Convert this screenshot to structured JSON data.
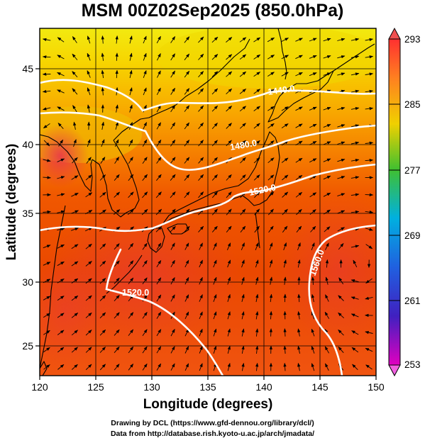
{
  "title": "MSM 00Z02Sep2025 (850.0hPa)",
  "xlabel": "Longitude (degrees)",
  "ylabel": "Latitude  (degrees)",
  "x_ticks": [
    "120",
    "125",
    "130",
    "135",
    "140",
    "145",
    "150"
  ],
  "y_ticks": [
    "25",
    "30",
    "35",
    "40",
    "45"
  ],
  "colorbar_ticks": [
    "293",
    "285",
    "277",
    "269",
    "261",
    "253"
  ],
  "contour_labels": [
    "1440.0",
    "1480.0",
    "1520.0",
    "1520.0",
    "1560.0"
  ],
  "credit_line1": "Drawing by DCL (https://www.gfd-dennou.org/library/dcl/)",
  "credit_line2": "Data from http://database.rish.kyoto-u.ac.jp/arch/jmadata/",
  "chart_data": {
    "type": "heatmap",
    "title": "MSM 00Z02Sep2025 (850.0hPa)",
    "xlabel": "Longitude (degrees)",
    "ylabel": "Latitude  (degrees)",
    "xlim": [
      120,
      150
    ],
    "ylim": [
      22.4,
      47.6
    ],
    "colorbar": {
      "range": [
        253,
        293
      ],
      "ticks": [
        293,
        285,
        277,
        269,
        261,
        253
      ],
      "colors": [
        "#e000c0",
        "#3030d0",
        "#00b0e0",
        "#00c060",
        "#d0e000",
        "#ff8000",
        "#ff3030"
      ]
    },
    "contours": [
      {
        "label": "1440.0",
        "points": [
          [
            120,
            44.8
          ],
          [
            122,
            45.0
          ],
          [
            124.5,
            44.6
          ],
          [
            127,
            43.7
          ],
          [
            129,
            42.2
          ],
          [
            132,
            42.9
          ],
          [
            135,
            42.9
          ],
          [
            138,
            42.9
          ],
          [
            141,
            43.4
          ],
          [
            144,
            43.7
          ],
          [
            147,
            43.3
          ],
          [
            150,
            43.0
          ]
        ]
      },
      {
        "label": "1480.0",
        "points": [
          [
            120,
            42.5
          ],
          [
            124,
            42.7
          ],
          [
            127,
            42.3
          ],
          [
            129.5,
            40.6
          ],
          [
            131,
            38.9
          ],
          [
            134,
            38.5
          ],
          [
            137,
            39.4
          ],
          [
            140,
            40.3
          ],
          [
            143,
            40.9
          ],
          [
            146,
            41.7
          ],
          [
            150,
            42.0
          ]
        ]
      },
      {
        "label": "1520.0",
        "points": [
          [
            121,
            33.5
          ],
          [
            123,
            33.9
          ],
          [
            125,
            33.7
          ],
          [
            127,
            33.3
          ],
          [
            129,
            33.2
          ],
          [
            131,
            32.8
          ],
          [
            133,
            33.4
          ],
          [
            135,
            34.0
          ],
          [
            137,
            36.0
          ],
          [
            139,
            35.8
          ],
          [
            141,
            36.2
          ],
          [
            143,
            37.1
          ],
          [
            146,
            37.5
          ],
          [
            150,
            37.9
          ]
        ]
      },
      {
        "label": "1520.0",
        "points": [
          [
            126,
            31.0
          ],
          [
            127.5,
            28.7
          ],
          [
            129,
            27.6
          ],
          [
            131,
            26.5
          ],
          [
            133,
            25.0
          ],
          [
            134,
            23.5
          ],
          [
            134.5,
            22.4
          ]
        ]
      },
      {
        "label": "1560.0",
        "points": [
          [
            150,
            34.7
          ],
          [
            147,
            34.4
          ],
          [
            145,
            33.6
          ],
          [
            143.5,
            31.8
          ],
          [
            143.3,
            29.5
          ],
          [
            143.5,
            27.0
          ],
          [
            144.5,
            24.7
          ],
          [
            145,
            22.4
          ]
        ]
      }
    ],
    "vector_field": {
      "grid_step_deg": 1.25,
      "centers": [
        {
          "lon": 121.2,
          "lat": 39.6,
          "spin": "cyclonic"
        },
        {
          "lon": 148.2,
          "lat": 30.7,
          "spin": "anticyclonic"
        }
      ]
    },
    "grid": true
  }
}
